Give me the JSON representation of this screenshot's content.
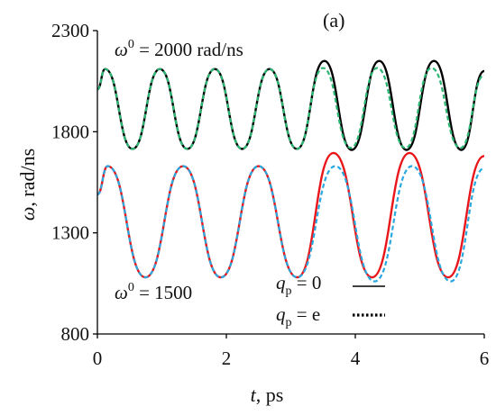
{
  "chart_data": {
    "type": "line",
    "panel_label": "(a)",
    "xlabel": {
      "symbol": "t",
      "unit": ", ps"
    },
    "ylabel": {
      "symbol": "ω",
      "unit": ", rad/ns"
    },
    "xlim": [
      0,
      6
    ],
    "ylim": [
      800,
      2300
    ],
    "x_ticks": [
      "0",
      "2",
      "4",
      "6"
    ],
    "y_ticks": [
      "800",
      "1300",
      "1800",
      "2300"
    ],
    "grid": false,
    "annotations": [
      {
        "id": "upper",
        "symbol": "ω",
        "sup": "0",
        "text": " = 2000 rad/ns"
      },
      {
        "id": "lower",
        "symbol": "ω",
        "sup": "0",
        "text": " = 1500"
      }
    ],
    "legend": {
      "placement": "bottom-right",
      "entries": [
        {
          "symbol": "q",
          "sub": "p",
          "text": " = 0",
          "style": "solid"
        },
        {
          "symbol": "q",
          "sub": "p",
          "text": " = e",
          "style": "dotted"
        }
      ]
    },
    "series": [
      {
        "group": "ω0 = 2000 rad/ns",
        "style": "solid",
        "color": "#000000",
        "x": [
          0.0,
          0.12,
          0.545,
          0.97,
          1.395,
          1.82,
          2.245,
          2.67,
          3.095,
          3.52,
          3.945,
          4.37,
          4.795,
          5.22,
          5.645,
          6.0
        ],
        "y": [
          2010,
          2110,
          1715,
          2110,
          1715,
          2110,
          1715,
          2110,
          1715,
          2150,
          1710,
          2150,
          1710,
          2150,
          1710,
          2100
        ]
      },
      {
        "group": "ω0 = 2000 rad/ns",
        "style": "dashed",
        "color": "#2bb673",
        "x": [
          0.0,
          0.12,
          0.545,
          0.97,
          1.395,
          1.82,
          2.245,
          2.67,
          3.095,
          3.5,
          3.93,
          4.34,
          4.78,
          5.18,
          5.63,
          6.0
        ],
        "y": [
          2010,
          2110,
          1715,
          2110,
          1715,
          2110,
          1715,
          2110,
          1715,
          2115,
          1720,
          2115,
          1720,
          2115,
          1720,
          2080
        ]
      },
      {
        "group": "ω0 = 1500",
        "style": "solid",
        "color": "#e8161b",
        "x": [
          0.0,
          0.16,
          0.745,
          1.33,
          1.915,
          2.5,
          3.1,
          3.66,
          4.26,
          4.84,
          5.44,
          6.0
        ],
        "y": [
          1490,
          1630,
          1080,
          1630,
          1080,
          1630,
          1080,
          1695,
          1080,
          1695,
          1080,
          1680
        ]
      },
      {
        "group": "ω0 = 1500",
        "style": "dashed",
        "color": "#29a8e0",
        "x": [
          0.0,
          0.16,
          0.745,
          1.33,
          1.915,
          2.5,
          3.1,
          3.69,
          4.3,
          4.88,
          5.48,
          6.0
        ],
        "y": [
          1490,
          1630,
          1080,
          1630,
          1080,
          1630,
          1080,
          1630,
          1060,
          1630,
          1060,
          1620
        ]
      }
    ]
  }
}
